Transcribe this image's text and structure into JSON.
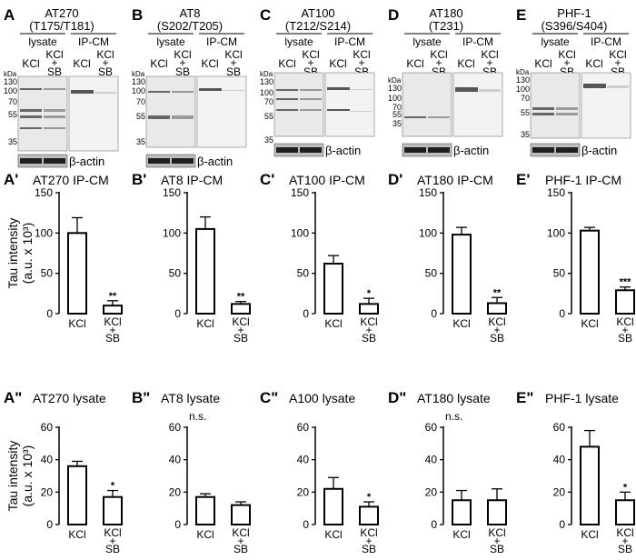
{
  "blots": [
    {
      "letter": "A",
      "antibody": "AT270",
      "sites": "(T175/T181)",
      "lysate_label": "lysate",
      "ipcm_label": "IP-CM",
      "lanes": [
        "KCl",
        "KCl + SB",
        "KCl",
        "KCl + SB"
      ],
      "kda_label": "kDa",
      "mw": [
        "130",
        "100",
        "70",
        "55",
        "35"
      ],
      "actin_label": "β-actin"
    },
    {
      "letter": "B",
      "antibody": "AT8",
      "sites": "(S202/T205)",
      "lysate_label": "lysate",
      "ipcm_label": "IP-CM",
      "lanes": [
        "KCl",
        "KCl + SB",
        "KCl",
        "KCl + SB"
      ],
      "kda_label": "kDa",
      "mw": [
        "130",
        "100",
        "70",
        "55",
        "35"
      ],
      "actin_label": "β-actin"
    },
    {
      "letter": "C",
      "antibody": "AT100",
      "sites": "(T212/S214)",
      "lysate_label": "lysate",
      "ipcm_label": "IP-CM",
      "lanes": [
        "KCl",
        "KCl + SB",
        "KCl",
        "KCl + SB"
      ],
      "kda_label": "kDa",
      "mw": [
        "130",
        "100",
        "70",
        "55",
        "35"
      ],
      "actin_label": "β-actin"
    },
    {
      "letter": "D",
      "antibody": "AT180",
      "sites": "(T231)",
      "lysate_label": "lysate",
      "ipcm_label": "IP-CM",
      "lanes": [
        "KCl",
        "KCl + SB",
        "KCl",
        "KCl + SB"
      ],
      "kda_label": "kDa",
      "mw": [
        "130",
        "100",
        "70",
        "55",
        "35"
      ],
      "actin_label": "β-actin"
    },
    {
      "letter": "E",
      "antibody": "PHF-1",
      "sites": "(S396/S404)",
      "lysate_label": "lysate",
      "ipcm_label": "IP-CM",
      "lanes": [
        "KCl",
        "KCl + SB",
        "KCl",
        "KCl + SB"
      ],
      "kda_label": "kDa",
      "mw": [
        "130",
        "100",
        "70",
        "55",
        "35"
      ],
      "actin_label": "β-actin"
    }
  ],
  "y_axis_label_line1": "Tau intensity",
  "y_axis_label_line2": "(a.u. x 10³)",
  "chart_data": [
    {
      "type": "bar",
      "panel": "A'",
      "title": "AT270 IP-CM",
      "categories": [
        "KCl",
        "KCl + SB"
      ],
      "values": [
        100,
        10
      ],
      "errors": [
        19,
        6
      ],
      "significance": [
        "",
        "**"
      ],
      "ylim": [
        0,
        150
      ],
      "yticks": [
        0,
        50,
        100,
        150
      ]
    },
    {
      "type": "bar",
      "panel": "B'",
      "title": "AT8 IP-CM",
      "categories": [
        "KCl",
        "KCl + SB"
      ],
      "values": [
        105,
        12
      ],
      "errors": [
        15,
        3
      ],
      "significance": [
        "",
        "**"
      ],
      "ylim": [
        0,
        150
      ],
      "yticks": [
        0,
        50,
        100,
        150
      ]
    },
    {
      "type": "bar",
      "panel": "C'",
      "title": "AT100 IP-CM",
      "categories": [
        "KCl",
        "KCl + SB"
      ],
      "values": [
        62,
        12
      ],
      "errors": [
        10,
        7
      ],
      "significance": [
        "",
        "*"
      ],
      "ylim": [
        0,
        150
      ],
      "yticks": [
        0,
        50,
        100,
        150
      ]
    },
    {
      "type": "bar",
      "panel": "D'",
      "title": "AT180 IP-CM",
      "categories": [
        "KCl",
        "KCl + SB"
      ],
      "values": [
        98,
        13
      ],
      "errors": [
        9,
        7
      ],
      "significance": [
        "",
        "**"
      ],
      "ylim": [
        0,
        150
      ],
      "yticks": [
        0,
        50,
        100,
        150
      ]
    },
    {
      "type": "bar",
      "panel": "E'",
      "title": "PHF-1 IP-CM",
      "categories": [
        "KCl",
        "KCl + SB"
      ],
      "values": [
        103,
        29
      ],
      "errors": [
        4,
        4
      ],
      "significance": [
        "",
        "***"
      ],
      "ylim": [
        0,
        150
      ],
      "yticks": [
        0,
        50,
        100,
        150
      ]
    },
    {
      "type": "bar",
      "panel": "A\"",
      "title": "AT270 lysate",
      "categories": [
        "KCl",
        "KCl + SB"
      ],
      "values": [
        36,
        17
      ],
      "errors": [
        3,
        4
      ],
      "significance": [
        "",
        "*"
      ],
      "annotation": "",
      "ylim": [
        0,
        60
      ],
      "yticks": [
        0,
        20,
        40,
        60
      ]
    },
    {
      "type": "bar",
      "panel": "B\"",
      "title": "AT8 lysate",
      "categories": [
        "KCl",
        "KCl + SB"
      ],
      "values": [
        17,
        12
      ],
      "errors": [
        2,
        2
      ],
      "significance": [
        "",
        ""
      ],
      "annotation": "n.s.",
      "ylim": [
        0,
        60
      ],
      "yticks": [
        0,
        20,
        40,
        60
      ]
    },
    {
      "type": "bar",
      "panel": "C\"",
      "title": "A100 lysate",
      "categories": [
        "KCl",
        "KCl + SB"
      ],
      "values": [
        22,
        11
      ],
      "errors": [
        7,
        3
      ],
      "significance": [
        "",
        "*"
      ],
      "annotation": "",
      "ylim": [
        0,
        60
      ],
      "yticks": [
        0,
        20,
        40,
        60
      ]
    },
    {
      "type": "bar",
      "panel": "D\"",
      "title": "AT180 lysate",
      "categories": [
        "KCl",
        "KCl + SB"
      ],
      "values": [
        15,
        15
      ],
      "errors": [
        6,
        7
      ],
      "significance": [
        "",
        ""
      ],
      "annotation": "n.s.",
      "ylim": [
        0,
        60
      ],
      "yticks": [
        0,
        20,
        40,
        60
      ]
    },
    {
      "type": "bar",
      "panel": "E\"",
      "title": "PHF-1 lysate",
      "categories": [
        "KCl",
        "KCl + SB"
      ],
      "values": [
        48,
        15
      ],
      "errors": [
        10,
        5
      ],
      "significance": [
        "",
        "*"
      ],
      "annotation": "",
      "ylim": [
        0,
        60
      ],
      "yticks": [
        0,
        20,
        40,
        60
      ]
    }
  ],
  "colors": {
    "bar_fill": "#ffffff",
    "stroke": "#000000",
    "blot_bg": "#e9e9e9",
    "band": "#3a3a3a"
  }
}
